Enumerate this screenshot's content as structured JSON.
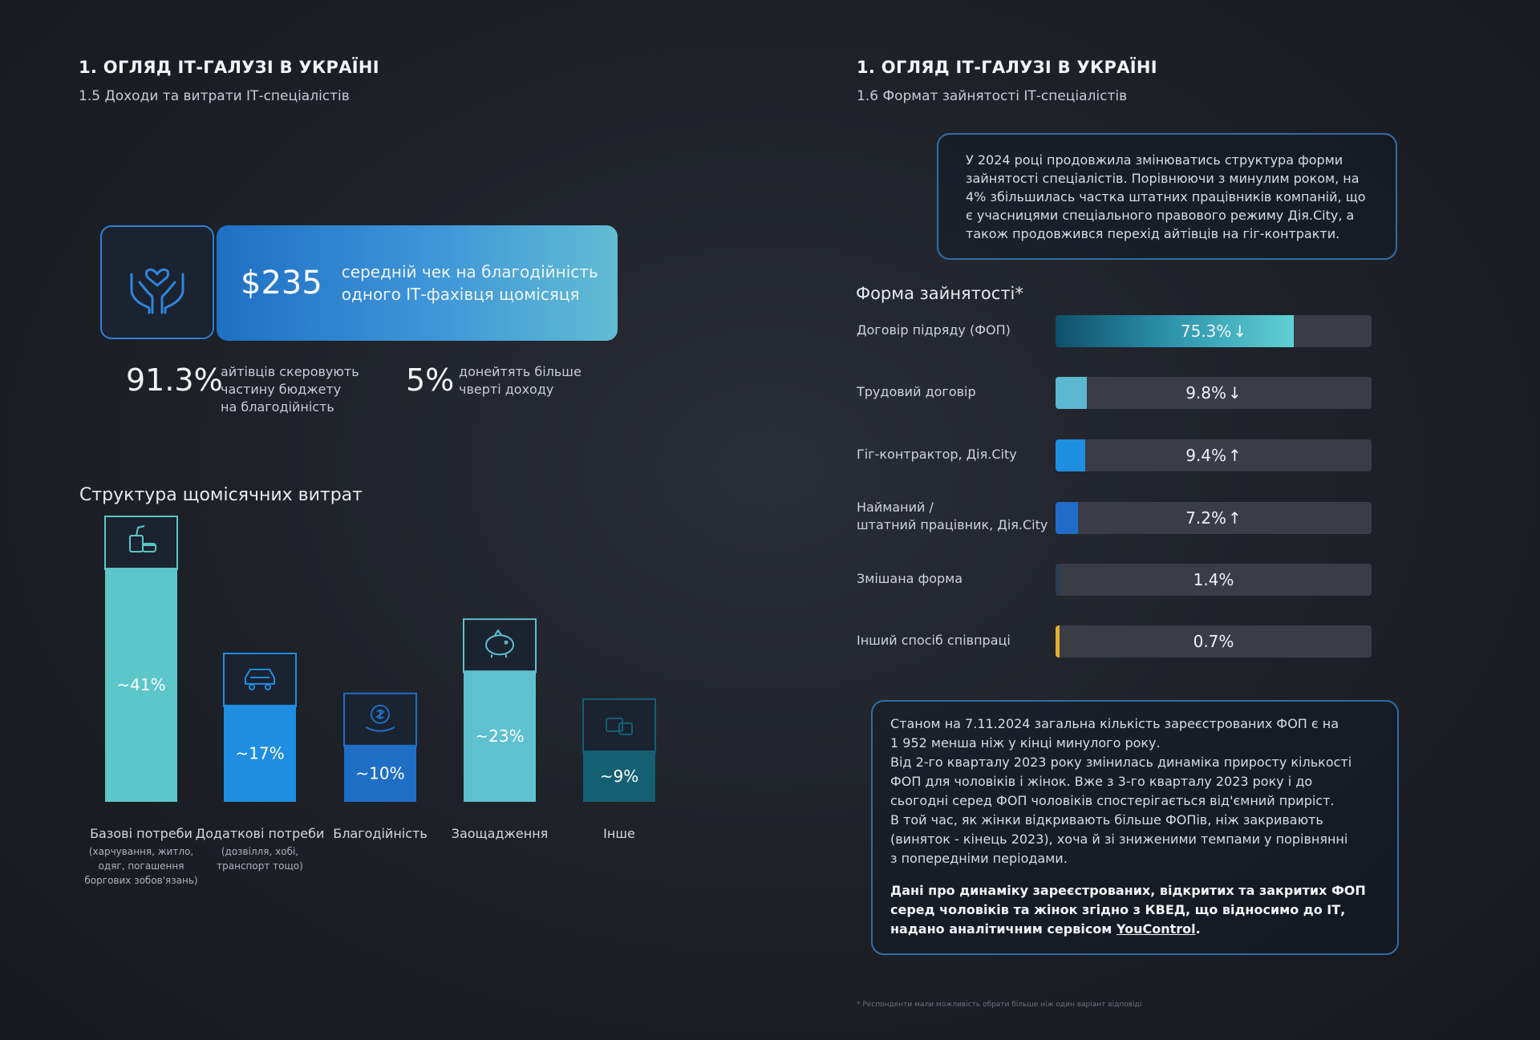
{
  "left": {
    "section_title": "1. ОГЛЯД ІТ-ГАЛУЗІ В УКРАЇНІ",
    "section_sub": "1.5 Доходи та витрати ІТ-спеціалістів",
    "charity": {
      "icon": "hands-heart-icon",
      "amount": "$235",
      "text_line1": "середній чек на благодійність",
      "text_line2": "одного ІТ-фахівця щомісяця"
    },
    "stat1": {
      "value": "91.3%",
      "line1": "айтівців скеровують",
      "line2": "частину бюджету",
      "line3": "на благодійність"
    },
    "stat2": {
      "value": "5%",
      "line1": "донейтять більше",
      "line2": "чверті доходу"
    },
    "chart_title": "Структура щомісячних витрат"
  },
  "right": {
    "section_title": "1. ОГЛЯД ІТ-ГАЛУЗІ В УКРАЇНІ",
    "section_sub": "1.6 Формат зайнятості ІТ-спеціалістів",
    "intro_lines": [
      "У 2024 році продовжила змінюватись структура форми",
      "зайнятості спеціалістів. Порівнюючи з минулим роком, на",
      "4% збільшилась частка штатних працівників компаній, що",
      "є учасницями спеціального правового режиму Дія.City, а",
      "також продовжився перехід айтівців на  гіг-контракти."
    ],
    "emp_title": "Форма зайнятості*",
    "note_lines": [
      "Станом на 7.11.2024 загальна кількість зареєстрованих ФОП є на",
      "1 952 менша ніж у кінці минулого року.",
      "Від 2-го кварталу 2023 року змінилась динаміка приросту кількості",
      "ФОП для чоловіків і жінок. Вже з 3-го кварталу 2023 року і до",
      "сьогодні серед ФОП чоловіків спостерігається від'ємний приріст.",
      "В той час, як жінки відкривають більше ФОПів, ніж закривають",
      "(виняток - кінець 2023), хоча й зі зниженими темпами у порівнянні",
      "з попередніми періодами."
    ],
    "note_bold_line1": "Дані про динаміку зареєстрованих, відкритих та закритих ФОП",
    "note_bold_line2": "серед чоловіків та жінок згідно з КВЕД, що відносимо до ІТ,",
    "note_bold_line3_pre": "надано аналітичним сервісом ",
    "note_bold_link": "YouControl",
    "note_bold_line3_post": ".",
    "footnote": "* Респонденти мали можливість обрати більше ніж один варіант відповіді"
  },
  "chart_data": [
    {
      "type": "bar",
      "title": "Структура щомісячних витрат",
      "categories": [
        "Базові потреби",
        "Додаткові потреби",
        "Благодійність",
        "Заощадження",
        "Інше"
      ],
      "category_notes": [
        [
          "(харчування, житло,",
          "одяг, погашення",
          "боргових зобов'язань)"
        ],
        [
          "(дозвілля, хобі,",
          "транспорт тощо)"
        ],
        [],
        [],
        []
      ],
      "values": [
        41,
        17,
        10,
        23,
        9
      ],
      "value_labels": [
        "~41%",
        "~17%",
        "~10%",
        "~23%",
        "~9%"
      ],
      "icons": [
        "food-drink-icon",
        "car-icon",
        "coin-hand-icon",
        "piggy-bank-icon",
        "misc-box-icon"
      ],
      "colors": [
        "#5cc6c9",
        "#1f8ee0",
        "#1f6ec6",
        "#5fc0cf",
        "#155f73"
      ],
      "ylim": [
        0,
        41
      ]
    },
    {
      "type": "bar",
      "orientation": "horizontal",
      "title": "Форма зайнятості*",
      "categories": [
        "Договір підряду (ФОП)",
        "Трудовий договір",
        "Гіг-контрактор, Дія.City",
        "Найманий /|штатний працівник, Дія.City",
        "Змішана форма",
        "Інший спосіб співпраці"
      ],
      "values": [
        75.3,
        9.8,
        9.4,
        7.2,
        1.4,
        0.7
      ],
      "value_labels": [
        "75.3%",
        "9.8%",
        "9.4%",
        "7.2%",
        "1.4%",
        "0.7%"
      ],
      "trends": [
        "down",
        "down",
        "up",
        "up",
        "",
        ""
      ],
      "colors": [
        "#4fc6cf",
        "#5cb8cf",
        "#1e8fe0",
        "#1f6dc8",
        "#2a3f52",
        "#e0b030"
      ],
      "xlim": [
        0,
        100
      ]
    }
  ]
}
